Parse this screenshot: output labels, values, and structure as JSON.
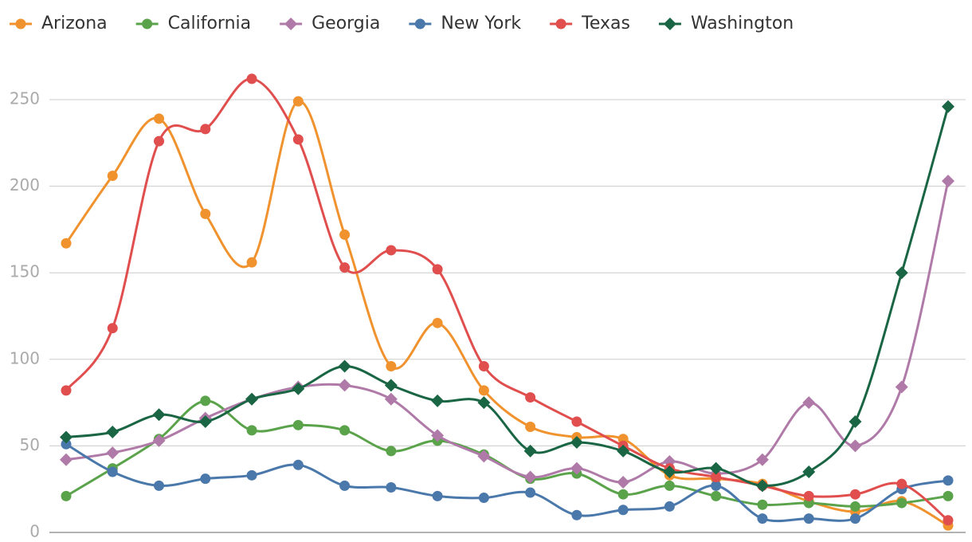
{
  "chart_data": {
    "type": "line",
    "ylim": [
      0,
      280
    ],
    "yticks": [
      0,
      50,
      100,
      150,
      200,
      250
    ],
    "grid": true,
    "smooth": true,
    "legend": "top",
    "series": [
      {
        "name": "Arizona",
        "color": "#f0922e",
        "marker": "circle",
        "values": [
          167,
          206,
          239,
          184,
          156,
          249,
          172,
          96,
          121,
          82,
          61,
          55,
          54,
          33,
          31,
          28,
          18,
          12,
          18,
          4
        ]
      },
      {
        "name": "California",
        "color": "#5aa34b",
        "marker": "circle",
        "values": [
          21,
          37,
          54,
          76,
          59,
          62,
          59,
          47,
          53,
          45,
          31,
          34,
          22,
          27,
          21,
          16,
          17,
          15,
          17,
          21
        ]
      },
      {
        "name": "Georgia",
        "color": "#b07aa8",
        "marker": "diamond",
        "values": [
          42,
          46,
          53,
          66,
          77,
          84,
          85,
          77,
          56,
          44,
          32,
          37,
          29,
          41,
          34,
          42,
          75,
          50,
          84,
          203
        ]
      },
      {
        "name": "New York",
        "color": "#4a78ab",
        "marker": "circle",
        "values": [
          51,
          35,
          27,
          31,
          33,
          39,
          27,
          26,
          21,
          20,
          23,
          10,
          13,
          15,
          27,
          8,
          8,
          8,
          25,
          30
        ]
      },
      {
        "name": "Texas",
        "color": "#e04e4e",
        "marker": "circle",
        "values": [
          82,
          118,
          226,
          233,
          262,
          227,
          153,
          163,
          152,
          96,
          78,
          64,
          50,
          37,
          32,
          27,
          21,
          22,
          28,
          7
        ]
      },
      {
        "name": "Washington",
        "color": "#1a6644",
        "marker": "diamond",
        "values": [
          55,
          58,
          68,
          64,
          77,
          83,
          96,
          85,
          76,
          75,
          47,
          52,
          47,
          35,
          37,
          27,
          35,
          64,
          150,
          246
        ]
      }
    ]
  }
}
